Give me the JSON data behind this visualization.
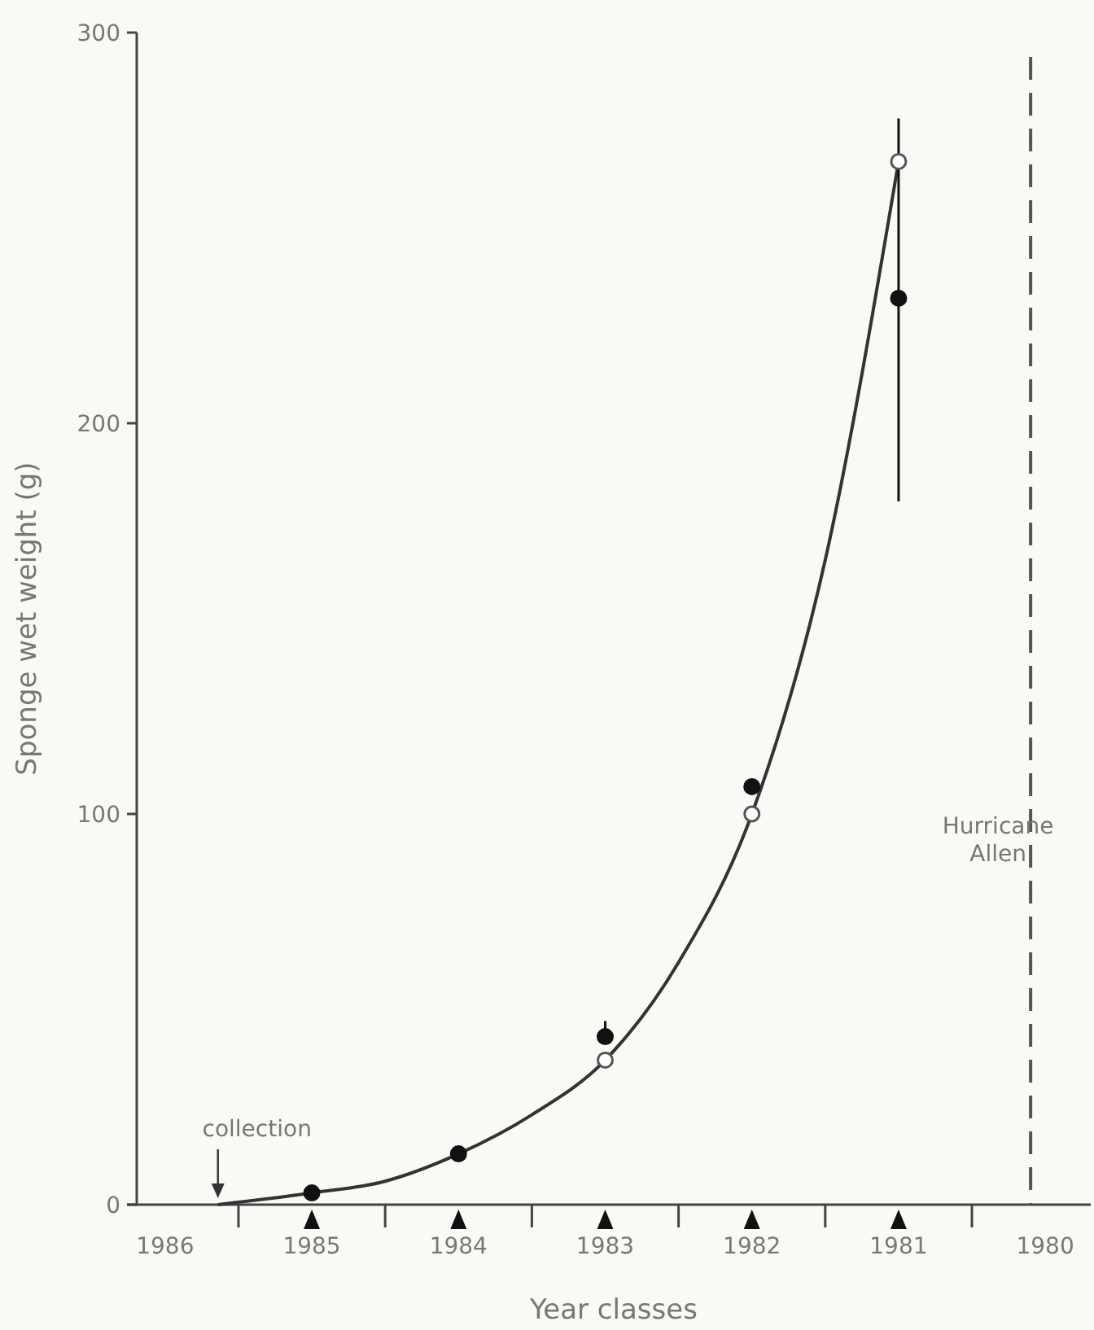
{
  "chart_data": {
    "type": "scatter",
    "xlabel": "Year classes",
    "ylabel": "Sponge wet weight (g)",
    "xlim": [
      1986.26,
      1979.69
    ],
    "xticks": [
      {
        "value": 1986,
        "label": "1986"
      },
      {
        "value": 1985,
        "label": "1985"
      },
      {
        "value": 1984,
        "label": "1984"
      },
      {
        "value": 1983,
        "label": "1983"
      },
      {
        "value": 1982,
        "label": "1982"
      },
      {
        "value": 1981,
        "label": "1981"
      },
      {
        "value": 1980,
        "label": "1980"
      },
      {
        "value": 1985.5,
        "label": null
      },
      {
        "value": 1984.5,
        "label": null
      },
      {
        "value": 1983.5,
        "label": null
      },
      {
        "value": 1982.5,
        "label": null
      },
      {
        "value": 1981.5,
        "label": null
      },
      {
        "value": 1980.5,
        "label": null
      }
    ],
    "ylim": [
      0,
      300
    ],
    "yticks": [
      0,
      100,
      200,
      300
    ],
    "grid": false,
    "series": [
      {
        "type": "line",
        "color": "#333333",
        "x": [
          1985.64,
          1985,
          1984.5,
          1984,
          1983.5,
          1983,
          1982.5,
          1982,
          1981.5,
          1981
        ],
        "values": [
          0,
          3,
          6,
          13,
          23,
          37,
          62,
          100,
          165,
          267
        ],
        "marker": "none",
        "line_style": "solid"
      },
      {
        "color": "#111111",
        "x": [
          1985,
          1984,
          1983,
          1982,
          1981
        ],
        "values": [
          3,
          13,
          43,
          107,
          232
        ],
        "errors": [
          null,
          null,
          [
            43,
            47
          ],
          null,
          [
            180,
            278
          ]
        ],
        "marker": "circle"
      },
      {
        "color": "#ffffff",
        "x": [
          1983,
          1982,
          1981
        ],
        "values": [
          37,
          100,
          267
        ],
        "marker": "circle"
      }
    ],
    "ref_lines": [
      {
        "axis": "x",
        "value": 1980.1,
        "label": "Hurricane\nAllen",
        "line_style": "dashed",
        "color": "#555555"
      }
    ],
    "annotations": [
      {
        "text": "collection",
        "x": 1985.64,
        "y": 0
      }
    ]
  }
}
